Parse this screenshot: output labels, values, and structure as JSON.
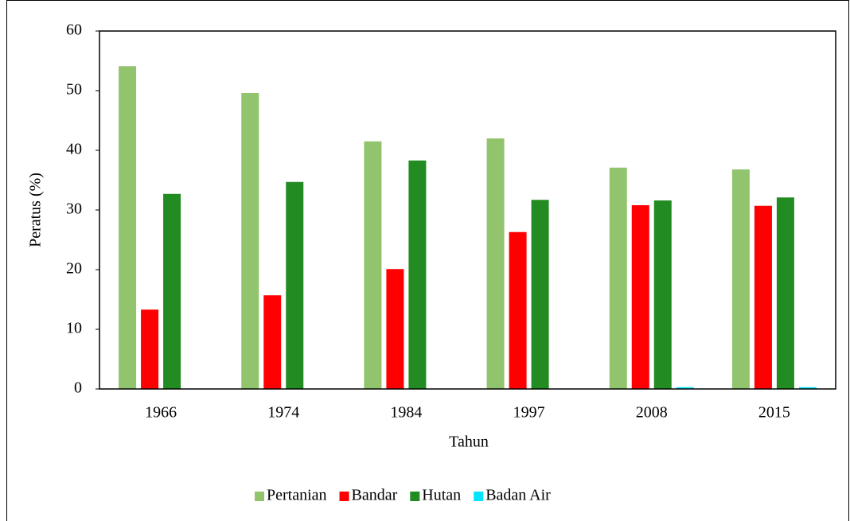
{
  "chart_data": {
    "type": "bar",
    "x_label": "Tahun",
    "y_label": "Peratus (%)",
    "categories": [
      "1966",
      "1974",
      "1984",
      "1997",
      "2008",
      "2015"
    ],
    "series": [
      {
        "name": "Pertanian",
        "color": "#92c46d",
        "values": [
          54.1,
          49.6,
          41.5,
          42.0,
          37.1,
          36.8
        ]
      },
      {
        "name": "Bandar",
        "color": "#ff0000",
        "values": [
          13.3,
          15.7,
          20.1,
          26.3,
          30.8,
          30.7
        ]
      },
      {
        "name": "Hutan",
        "color": "#228b22",
        "values": [
          32.7,
          34.7,
          38.3,
          31.7,
          31.6,
          32.1
        ]
      },
      {
        "name": "Badan Air",
        "color": "#00e5ff",
        "values": [
          0,
          0,
          0,
          0,
          0.3,
          0.3
        ]
      }
    ],
    "ylim": [
      0,
      60
    ],
    "yticks": [
      0,
      10,
      20,
      30,
      40,
      50,
      60
    ],
    "grid": false,
    "legend": "bottom"
  }
}
